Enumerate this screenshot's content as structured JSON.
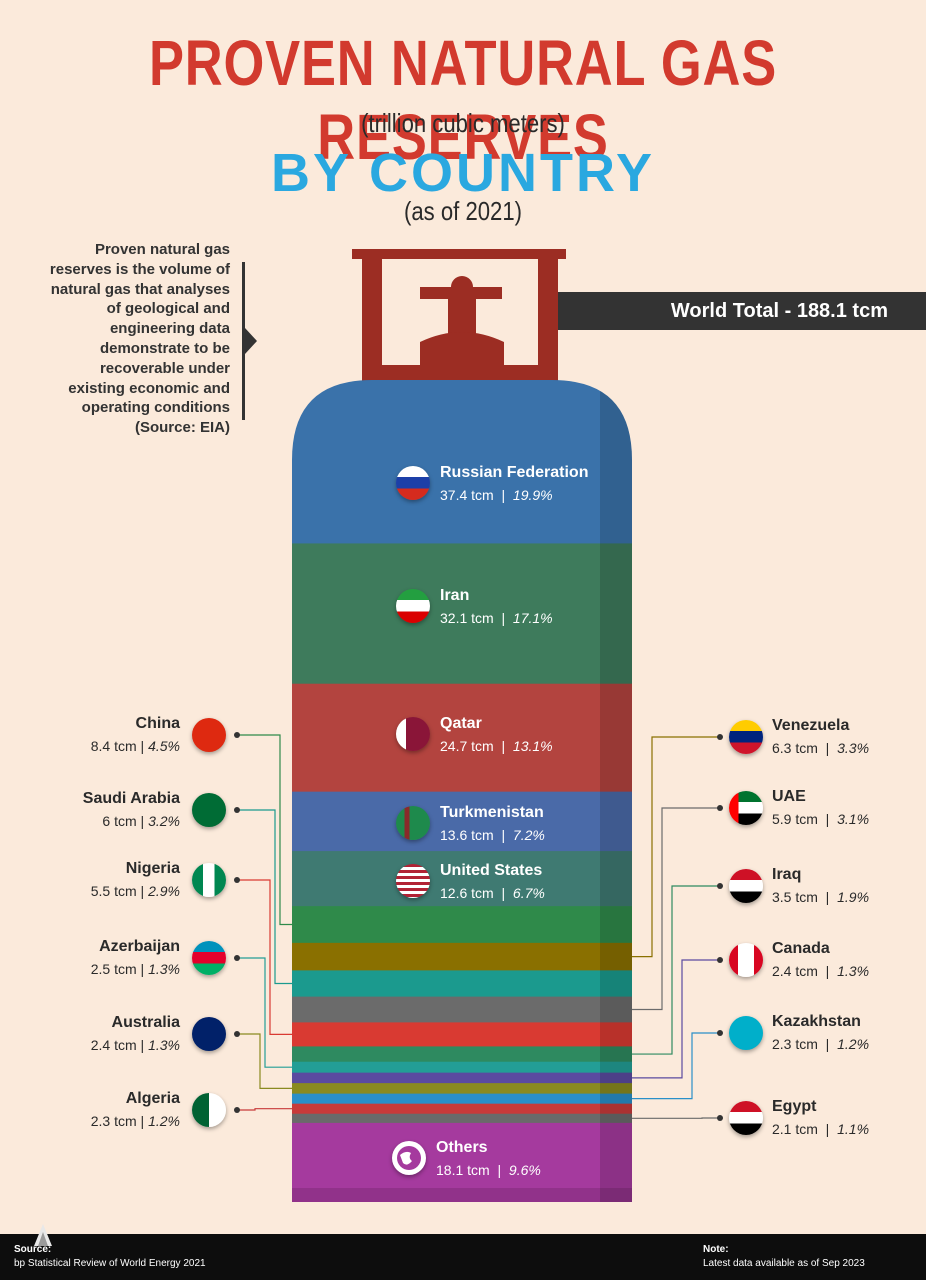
{
  "header": {
    "title": "PROVEN NATURAL GAS RESERVES",
    "unit": "(trillion cubic meters)",
    "subtitle": "BY COUNTRY",
    "as_of": "(as of 2021)"
  },
  "definition": "Proven natural gas reserves is the volume of natural gas that analyses of geological and engineering data demonstrate to be recoverable under existing economic and operating conditions (Source: EIA)",
  "world_total": "World Total - 188.1 tcm",
  "chart_data": {
    "type": "bar",
    "title": "PROVEN NATURAL GAS RESERVES",
    "subtitle": "BY COUNTRY",
    "unit": "trillion cubic meters",
    "total": 188.1,
    "categories": [
      "Russian Federation",
      "Iran",
      "Qatar",
      "Turkmenistan",
      "United States",
      "China",
      "Venezuela",
      "Saudi Arabia",
      "UAE",
      "Nigeria",
      "Iraq",
      "Azerbaijan",
      "Canada",
      "Australia",
      "Kazakhstan",
      "Algeria",
      "Egypt",
      "Others"
    ],
    "values": [
      37.4,
      32.1,
      24.7,
      13.6,
      12.6,
      8.4,
      6.3,
      6,
      5.9,
      5.5,
      3.5,
      2.5,
      2.4,
      2.4,
      2.3,
      2.3,
      2.1,
      18.1
    ],
    "shares": [
      "19.9%",
      "17.1%",
      "13.1%",
      "7.2%",
      "6.7%",
      "4.5%",
      "3.3%",
      "3.2%",
      "3.1%",
      "2.9%",
      "1.9%",
      "1.3%",
      "1.3%",
      "1.3%",
      "1.2%",
      "1.2%",
      "1.1%",
      "9.6%"
    ],
    "colors": [
      "#3a72aa",
      "#3e7b5c",
      "#b3443f",
      "#4a6aa8",
      "#3f7a72",
      "#2f8a4a",
      "#8a7000",
      "#1b9a8e",
      "#6b6b6b",
      "#d93a32",
      "#2e8a60",
      "#239e96",
      "#5b4aa0",
      "#8a8a20",
      "#2a8fc8",
      "#c83a3a",
      "#6a6a6a",
      "#a53a9e"
    ],
    "inside": [
      {
        "name": "Russian Federation",
        "value": "37.4 tcm",
        "share": "19.9%"
      },
      {
        "name": "Iran",
        "value": "32.1 tcm",
        "share": "17.1%"
      },
      {
        "name": "Qatar",
        "value": "24.7 tcm",
        "share": "13.1%"
      },
      {
        "name": "Turkmenistan",
        "value": "13.6 tcm",
        "share": "7.2%"
      },
      {
        "name": "United States",
        "value": "12.6 tcm",
        "share": "6.7%"
      },
      {
        "name": "Others",
        "value": "18.1 tcm",
        "share": "9.6%"
      }
    ],
    "left": [
      {
        "name": "China",
        "value": "8.4 tcm",
        "share": "4.5%"
      },
      {
        "name": "Saudi Arabia",
        "value": "6 tcm",
        "share": "3.2%"
      },
      {
        "name": "Nigeria",
        "value": "5.5 tcm",
        "share": "2.9%"
      },
      {
        "name": "Azerbaijan",
        "value": "2.5 tcm",
        "share": "1.3%"
      },
      {
        "name": "Australia",
        "value": "2.4 tcm",
        "share": "1.3%"
      },
      {
        "name": "Algeria",
        "value": "2.3 tcm",
        "share": "1.2%"
      }
    ],
    "right": [
      {
        "name": "Venezuela",
        "value": "6.3 tcm",
        "share": "3.3%"
      },
      {
        "name": "UAE",
        "value": "5.9 tcm",
        "share": "3.1%"
      },
      {
        "name": "Iraq",
        "value": "3.5 tcm",
        "share": "1.9%"
      },
      {
        "name": "Canada",
        "value": "2.4 tcm",
        "share": "1.3%"
      },
      {
        "name": "Kazakhstan",
        "value": "2.3 tcm",
        "share": "1.2%"
      },
      {
        "name": "Egypt",
        "value": "2.1 tcm",
        "share": "1.1%"
      }
    ]
  },
  "footer": {
    "source_label": "Source:",
    "source": "bp Statistical Review of World Energy 2021",
    "note_label": "Note:",
    "note": "Latest data available as of Sep 2023"
  }
}
